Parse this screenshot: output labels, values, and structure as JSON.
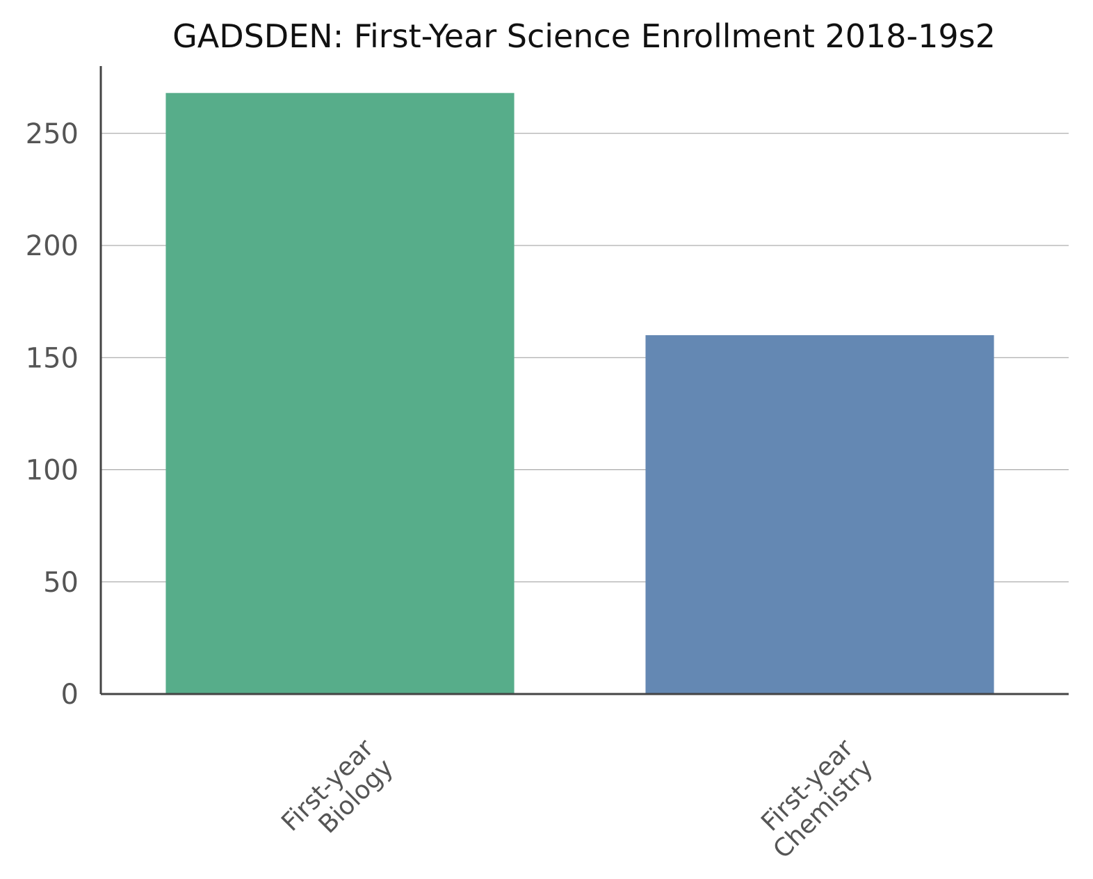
{
  "chart_data": {
    "type": "bar",
    "title": "GADSDEN: First-Year Science Enrollment 2018-19s2",
    "xlabel": "",
    "ylabel": "",
    "categories": [
      [
        "First-year",
        "Biology"
      ],
      [
        "First-year",
        "Chemistry"
      ]
    ],
    "values": [
      268,
      160
    ],
    "colors": [
      "#57ad8a",
      "#6488b3"
    ],
    "ylim": [
      0,
      280
    ],
    "yticks": [
      0,
      50,
      100,
      150,
      200,
      250
    ],
    "grid": true,
    "legend": "none"
  }
}
